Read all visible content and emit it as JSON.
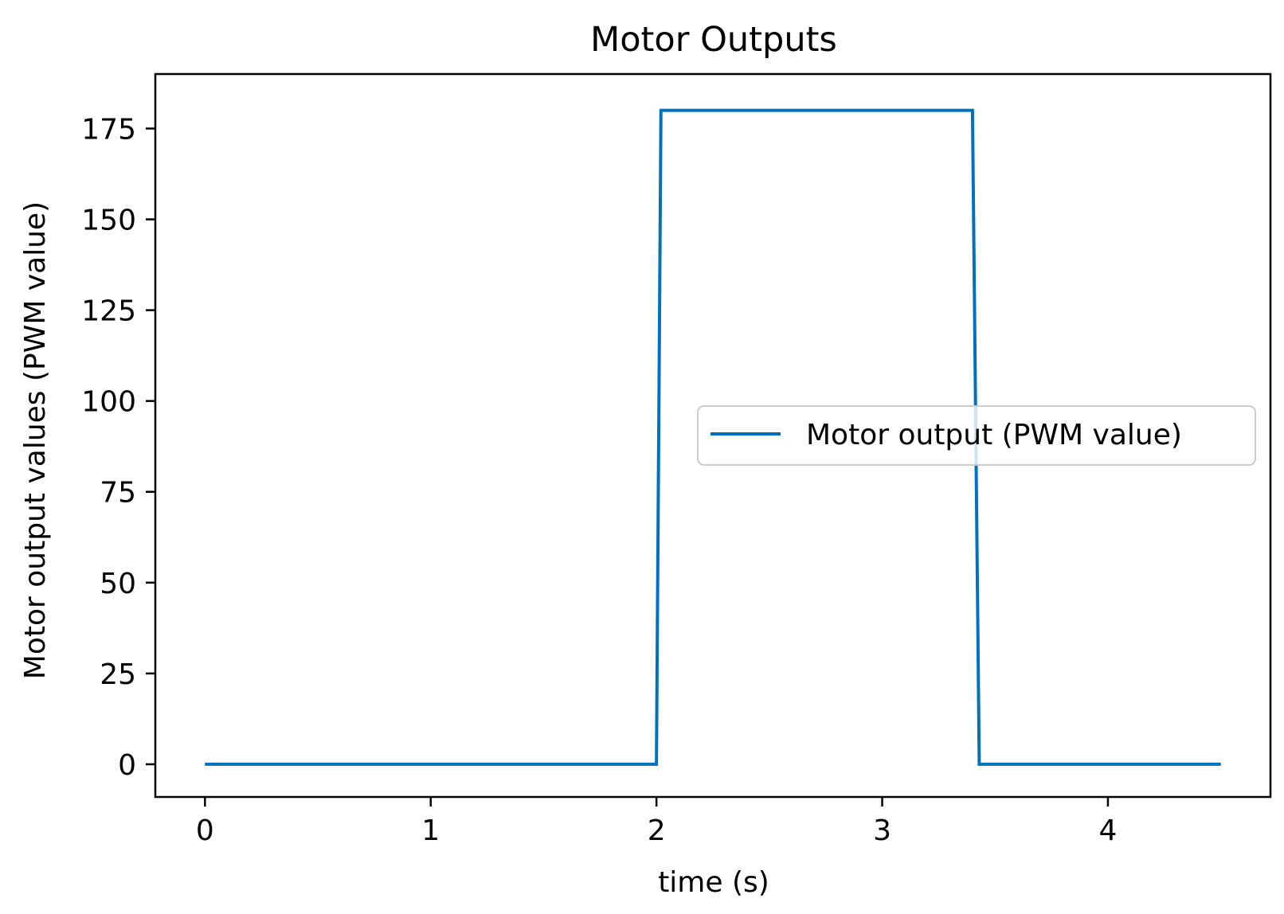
{
  "chart_data": {
    "type": "line",
    "title": "Motor Outputs",
    "xlabel": "time (s)",
    "ylabel": "Motor output values (PWM value)",
    "xlim": [
      -0.22,
      4.72
    ],
    "ylim": [
      -9,
      190
    ],
    "xticks": [
      0,
      1,
      2,
      3,
      4
    ],
    "yticks": [
      0,
      25,
      50,
      75,
      100,
      125,
      150,
      175
    ],
    "grid": false,
    "legend_position": "center-right",
    "series": [
      {
        "name": "Motor output (PWM value)",
        "color": "#0072bd",
        "x": [
          0,
          2.0,
          2.02,
          3.4,
          3.43,
          4.5
        ],
        "y": [
          0,
          0,
          180,
          180,
          0,
          0
        ]
      }
    ]
  }
}
